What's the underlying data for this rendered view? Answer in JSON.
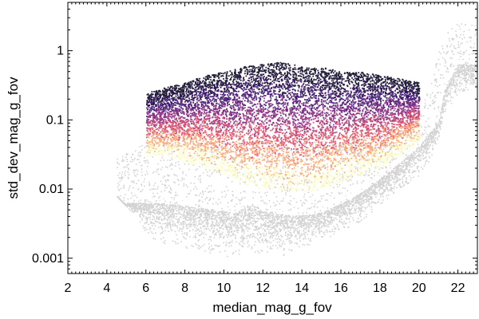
{
  "chart_data": {
    "type": "scatter",
    "title": "",
    "xlabel": "median_mag_g_fov",
    "ylabel": "std_dev_mag_g_fov",
    "xlim": [
      2,
      23
    ],
    "ylim": [
      0.0006,
      5
    ],
    "yscale": "log",
    "grid": false,
    "legend": "none",
    "x_ticks": [
      2,
      4,
      6,
      8,
      10,
      12,
      14,
      16,
      18,
      20,
      22
    ],
    "y_ticks": [
      0.001,
      0.01,
      0.1,
      1
    ],
    "y_tick_labels": [
      "0.001",
      "0.01",
      "0.1",
      "1"
    ],
    "series": [
      {
        "type": "density-background",
        "color": "#808080",
        "envelope_lower": {
          "x": [
            4.5,
            5.5,
            6,
            7,
            8,
            9,
            9.5,
            10,
            10.5,
            11,
            11.5,
            12,
            12.5,
            13,
            14,
            15,
            16,
            17,
            18,
            19,
            20,
            20.5,
            21,
            21.3,
            22,
            23
          ],
          "y": [
            0.008,
            0.004,
            0.0022,
            0.0016,
            0.0014,
            0.0013,
            0.0011,
            0.0011,
            0.0009,
            0.0012,
            0.0011,
            0.0011,
            0.0012,
            0.0011,
            0.0014,
            0.0018,
            0.0025,
            0.0035,
            0.006,
            0.01,
            0.016,
            0.025,
            0.05,
            0.12,
            0.25,
            0.3
          ]
        },
        "envelope_upper": {
          "x": [
            4.5,
            5.5,
            6,
            7,
            8,
            9,
            10,
            12,
            14,
            16,
            18,
            19,
            20,
            20.5,
            21,
            21.5,
            22,
            23
          ],
          "y": [
            0.03,
            0.04,
            0.05,
            0.05,
            0.05,
            0.05,
            0.05,
            0.05,
            0.05,
            0.05,
            0.06,
            0.08,
            0.12,
            0.35,
            1.0,
            2.0,
            2.5,
            2.5
          ]
        }
      },
      {
        "type": "median-line",
        "color": "#ffffff",
        "x": [
          6,
          7,
          8,
          9,
          9.5,
          10,
          10.5,
          11,
          11.5,
          12,
          12.5,
          13,
          13.5,
          14,
          15,
          16,
          17,
          18,
          19,
          20,
          20.5,
          21,
          21.3,
          22,
          23
        ],
        "y": [
          0.0072,
          0.007,
          0.0065,
          0.006,
          0.0058,
          0.0055,
          0.005,
          0.006,
          0.007,
          0.0055,
          0.005,
          0.0049,
          0.0047,
          0.0047,
          0.0052,
          0.007,
          0.01,
          0.016,
          0.027,
          0.048,
          0.07,
          0.11,
          0.3,
          0.72,
          0.74
        ]
      },
      {
        "type": "colored-scatter",
        "colormap": [
          "#0b0726",
          "#3b0f70",
          "#8c2981",
          "#de4968",
          "#fe9f6d",
          "#fcfdbf"
        ],
        "x_range": [
          6,
          20
        ],
        "lower_boundary_y": [
          0.03,
          0.03,
          0.025,
          0.02,
          0.016,
          0.012,
          0.01,
          0.009,
          0.009,
          0.01,
          0.013,
          0.016,
          0.02,
          0.03,
          0.05
        ],
        "upper_boundary_y": [
          0.25,
          0.3,
          0.35,
          0.45,
          0.5,
          0.6,
          0.65,
          0.7,
          0.6,
          0.6,
          0.5,
          0.5,
          0.45,
          0.4,
          0.35
        ]
      }
    ]
  }
}
